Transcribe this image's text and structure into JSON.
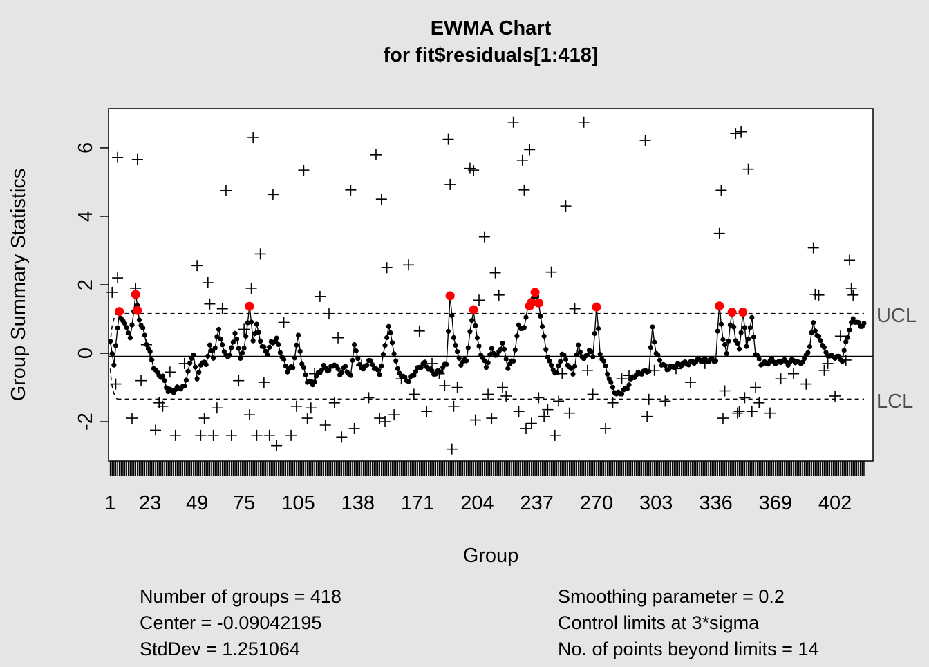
{
  "chart_data": {
    "type": "line",
    "chart_kind": "EWMA control chart",
    "title": "EWMA Chart",
    "subtitle": "for fit$residuals[1:418]",
    "xlabel": "Group",
    "ylabel": "Group Summary Statistics",
    "xlim": [
      0,
      423
    ],
    "ylim": [
      -3.15,
      7.15
    ],
    "x_ticks": [
      "1",
      "23",
      "49",
      "75",
      "105",
      "138",
      "171",
      "204",
      "237",
      "270",
      "303",
      "336",
      "369",
      "402"
    ],
    "y_ticks": [
      "-2",
      "0",
      "2",
      "4",
      "6"
    ],
    "n_groups": 418,
    "center": -0.09042195,
    "ucl": 1.16,
    "lcl": -1.34,
    "limit_labels": {
      "upper": "UCL",
      "lower": "LCL"
    },
    "ewma_anchor_points": [
      [
        1,
        0.3
      ],
      [
        3,
        -0.3
      ],
      [
        6,
        1.2
      ],
      [
        8,
        0.9
      ],
      [
        10,
        0.8
      ],
      [
        12,
        0.4
      ],
      [
        15,
        1.7
      ],
      [
        17,
        1.0
      ],
      [
        19,
        0.7
      ],
      [
        21,
        0.3
      ],
      [
        23,
        0.0
      ],
      [
        25,
        -0.4
      ],
      [
        27,
        -0.6
      ],
      [
        30,
        -0.7
      ],
      [
        33,
        -1.1
      ],
      [
        36,
        -1.1
      ],
      [
        39,
        -1.0
      ],
      [
        42,
        -1.0
      ],
      [
        44,
        -0.5
      ],
      [
        47,
        0.0
      ],
      [
        49,
        -0.8
      ],
      [
        51,
        -0.3
      ],
      [
        54,
        -0.3
      ],
      [
        56,
        0.2
      ],
      [
        58,
        -0.1
      ],
      [
        61,
        0.7
      ],
      [
        64,
        0.0
      ],
      [
        67,
        -0.1
      ],
      [
        70,
        0.6
      ],
      [
        73,
        -0.1
      ],
      [
        75,
        0.1
      ],
      [
        78,
        1.35
      ],
      [
        80,
        0.4
      ],
      [
        82,
        0.8
      ],
      [
        85,
        0.2
      ],
      [
        88,
        0.0
      ],
      [
        90,
        0.3
      ],
      [
        93,
        0.4
      ],
      [
        96,
        -0.1
      ],
      [
        99,
        -0.5
      ],
      [
        102,
        -0.4
      ],
      [
        105,
        0.5
      ],
      [
        107,
        -0.3
      ],
      [
        110,
        -0.8
      ],
      [
        113,
        -0.9
      ],
      [
        116,
        -0.6
      ],
      [
        119,
        -0.4
      ],
      [
        122,
        -0.5
      ],
      [
        125,
        -0.3
      ],
      [
        128,
        -0.6
      ],
      [
        131,
        -0.4
      ],
      [
        134,
        -0.7
      ],
      [
        136,
        0.3
      ],
      [
        138,
        -0.2
      ],
      [
        141,
        -0.5
      ],
      [
        144,
        -0.2
      ],
      [
        147,
        -0.4
      ],
      [
        150,
        -0.6
      ],
      [
        153,
        0.2
      ],
      [
        155,
        0.8
      ],
      [
        157,
        0.3
      ],
      [
        160,
        -0.5
      ],
      [
        163,
        -0.7
      ],
      [
        166,
        -0.8
      ],
      [
        169,
        -0.6
      ],
      [
        172,
        -0.4
      ],
      [
        175,
        -0.3
      ],
      [
        178,
        -0.5
      ],
      [
        181,
        -0.6
      ],
      [
        184,
        -0.5
      ],
      [
        187,
        -0.3
      ],
      [
        189,
        1.65
      ],
      [
        191,
        0.5
      ],
      [
        193,
        0.0
      ],
      [
        195,
        -0.3
      ],
      [
        198,
        -0.2
      ],
      [
        200,
        0.6
      ],
      [
        202,
        1.25
      ],
      [
        204,
        0.4
      ],
      [
        206,
        0.0
      ],
      [
        209,
        -0.4
      ],
      [
        212,
        0.1
      ],
      [
        215,
        -0.1
      ],
      [
        218,
        0.3
      ],
      [
        221,
        -0.4
      ],
      [
        224,
        -0.2
      ],
      [
        227,
        0.8
      ],
      [
        230,
        0.7
      ],
      [
        232,
        1.4
      ],
      [
        234,
        1.5
      ],
      [
        236,
        1.8
      ],
      [
        238,
        1.45
      ],
      [
        240,
        0.8
      ],
      [
        242,
        0.1
      ],
      [
        245,
        -0.4
      ],
      [
        248,
        -0.6
      ],
      [
        251,
        0.0
      ],
      [
        254,
        -0.3
      ],
      [
        257,
        -0.6
      ],
      [
        260,
        0.2
      ],
      [
        263,
        -0.2
      ],
      [
        266,
        0.1
      ],
      [
        268,
        -0.1
      ],
      [
        270,
        1.35
      ],
      [
        272,
        0.0
      ],
      [
        275,
        -0.4
      ],
      [
        278,
        -0.9
      ],
      [
        281,
        -1.2
      ],
      [
        284,
        -1.15
      ],
      [
        287,
        -1.0
      ],
      [
        290,
        -0.7
      ],
      [
        293,
        -0.6
      ],
      [
        296,
        -0.55
      ],
      [
        299,
        -0.5
      ],
      [
        301,
        0.75
      ],
      [
        303,
        0.0
      ],
      [
        306,
        -0.3
      ],
      [
        309,
        -0.45
      ],
      [
        312,
        -0.4
      ],
      [
        315,
        -0.35
      ],
      [
        318,
        -0.3
      ],
      [
        321,
        -0.3
      ],
      [
        324,
        -0.25
      ],
      [
        327,
        -0.2
      ],
      [
        330,
        -0.2
      ],
      [
        333,
        -0.2
      ],
      [
        336,
        -0.2
      ],
      [
        338,
        1.4
      ],
      [
        340,
        0.4
      ],
      [
        342,
        0.0
      ],
      [
        345,
        1.2
      ],
      [
        347,
        0.4
      ],
      [
        349,
        0.1
      ],
      [
        351,
        1.2
      ],
      [
        353,
        0.2
      ],
      [
        356,
        1.0
      ],
      [
        358,
        0.0
      ],
      [
        361,
        -0.3
      ],
      [
        364,
        -0.3
      ],
      [
        367,
        -0.2
      ],
      [
        370,
        -0.3
      ],
      [
        373,
        -0.2
      ],
      [
        376,
        -0.3
      ],
      [
        379,
        -0.2
      ],
      [
        382,
        -0.3
      ],
      [
        385,
        -0.2
      ],
      [
        388,
        0.2
      ],
      [
        390,
        0.9
      ],
      [
        392,
        0.5
      ],
      [
        394,
        0.4
      ],
      [
        397,
        0.0
      ],
      [
        400,
        -0.1
      ],
      [
        403,
        -0.1
      ],
      [
        406,
        -0.2
      ],
      [
        408,
        0.3
      ],
      [
        410,
        0.7
      ],
      [
        412,
        1.0
      ],
      [
        414,
        0.9
      ],
      [
        416,
        0.8
      ],
      [
        418,
        0.85
      ]
    ],
    "points_beyond_limits_xy": [
      [
        6,
        1.22
      ],
      [
        15,
        1.72
      ],
      [
        16,
        1.25
      ],
      [
        78,
        1.37
      ],
      [
        189,
        1.68
      ],
      [
        202,
        1.27
      ],
      [
        233,
        1.38
      ],
      [
        234,
        1.48
      ],
      [
        236,
        1.78
      ],
      [
        238,
        1.47
      ],
      [
        270,
        1.35
      ],
      [
        338,
        1.38
      ],
      [
        345,
        1.2
      ],
      [
        351,
        1.2
      ]
    ],
    "group_summary_points": [
      [
        2,
        1.78
      ],
      [
        4,
        -0.9
      ],
      [
        5,
        2.2
      ],
      [
        5,
        5.72
      ],
      [
        13,
        -1.9
      ],
      [
        15,
        1.9
      ],
      [
        16,
        5.66
      ],
      [
        18,
        -0.8
      ],
      [
        21,
        0.25
      ],
      [
        23,
        -0.1
      ],
      [
        26,
        -2.25
      ],
      [
        28,
        -1.45
      ],
      [
        30,
        -1.55
      ],
      [
        34,
        -0.55
      ],
      [
        37,
        -2.4
      ],
      [
        42,
        -0.3
      ],
      [
        49,
        2.56
      ],
      [
        51,
        -2.4
      ],
      [
        53,
        -1.9
      ],
      [
        55,
        2.06
      ],
      [
        56,
        1.44
      ],
      [
        58,
        -2.4
      ],
      [
        60,
        -1.6
      ],
      [
        63,
        1.3
      ],
      [
        65,
        4.75
      ],
      [
        68,
        -2.4
      ],
      [
        72,
        -0.8
      ],
      [
        75,
        0.7
      ],
      [
        78,
        -1.8
      ],
      [
        79,
        1.9
      ],
      [
        80,
        6.3
      ],
      [
        82,
        -2.4
      ],
      [
        84,
        2.9
      ],
      [
        86,
        -0.85
      ],
      [
        89,
        -2.4
      ],
      [
        91,
        4.64
      ],
      [
        93,
        -2.7
      ],
      [
        97,
        0.9
      ],
      [
        101,
        -2.4
      ],
      [
        104,
        -1.55
      ],
      [
        108,
        5.35
      ],
      [
        110,
        -1.9
      ],
      [
        112,
        -1.6
      ],
      [
        114,
        -0.6
      ],
      [
        117,
        1.66
      ],
      [
        120,
        -2.1
      ],
      [
        122,
        1.15
      ],
      [
        125,
        -1.45
      ],
      [
        127,
        0.45
      ],
      [
        129,
        -2.45
      ],
      [
        134,
        4.77
      ],
      [
        136,
        -2.2
      ],
      [
        140,
        -0.35
      ],
      [
        144,
        -1.3
      ],
      [
        148,
        5.8
      ],
      [
        150,
        -1.9
      ],
      [
        151,
        4.5
      ],
      [
        153,
        -2.0
      ],
      [
        154,
        2.5
      ],
      [
        158,
        -1.8
      ],
      [
        162,
        -0.75
      ],
      [
        166,
        2.58
      ],
      [
        169,
        -1.2
      ],
      [
        172,
        0.65
      ],
      [
        176,
        -1.7
      ],
      [
        179,
        -0.3
      ],
      [
        183,
        -0.6
      ],
      [
        186,
        -0.95
      ],
      [
        188,
        6.25
      ],
      [
        189,
        4.93
      ],
      [
        190,
        -2.8
      ],
      [
        191,
        -1.55
      ],
      [
        193,
        -1.0
      ],
      [
        200,
        5.4
      ],
      [
        202,
        5.35
      ],
      [
        203,
        -1.95
      ],
      [
        205,
        1.55
      ],
      [
        208,
        3.4
      ],
      [
        210,
        -1.2
      ],
      [
        212,
        -1.9
      ],
      [
        214,
        2.35
      ],
      [
        216,
        1.7
      ],
      [
        218,
        -1.0
      ],
      [
        220,
        -1.25
      ],
      [
        224,
        6.75
      ],
      [
        227,
        -1.7
      ],
      [
        229,
        5.64
      ],
      [
        230,
        4.77
      ],
      [
        231,
        -2.2
      ],
      [
        233,
        5.95
      ],
      [
        234,
        -2.05
      ],
      [
        238,
        -1.3
      ],
      [
        241,
        -1.85
      ],
      [
        243,
        -1.65
      ],
      [
        245,
        2.37
      ],
      [
        247,
        -2.4
      ],
      [
        249,
        -1.4
      ],
      [
        251,
        -0.6
      ],
      [
        253,
        4.3
      ],
      [
        255,
        -1.75
      ],
      [
        258,
        1.3
      ],
      [
        263,
        6.75
      ],
      [
        265,
        -0.5
      ],
      [
        268,
        -1.2
      ],
      [
        275,
        -2.2
      ],
      [
        279,
        -1.45
      ],
      [
        284,
        -0.75
      ],
      [
        288,
        -0.65
      ],
      [
        297,
        6.22
      ],
      [
        298,
        -1.85
      ],
      [
        299,
        -1.35
      ],
      [
        302,
        -0.5
      ],
      [
        308,
        -1.4
      ],
      [
        314,
        -0.45
      ],
      [
        322,
        -0.85
      ],
      [
        330,
        -0.3
      ],
      [
        338,
        3.5
      ],
      [
        339,
        4.76
      ],
      [
        340,
        -1.9
      ],
      [
        341,
        -1.1
      ],
      [
        347,
        6.42
      ],
      [
        348,
        -1.75
      ],
      [
        349,
        -1.7
      ],
      [
        350,
        6.47
      ],
      [
        352,
        -1.3
      ],
      [
        354,
        5.38
      ],
      [
        356,
        -1.7
      ],
      [
        358,
        -1.0
      ],
      [
        360,
        -1.45
      ],
      [
        366,
        -1.75
      ],
      [
        372,
        -0.75
      ],
      [
        379,
        -0.6
      ],
      [
        386,
        -0.9
      ],
      [
        390,
        3.08
      ],
      [
        391,
        1.72
      ],
      [
        393,
        1.7
      ],
      [
        396,
        -0.5
      ],
      [
        398,
        -0.3
      ],
      [
        402,
        -1.25
      ],
      [
        405,
        0.5
      ],
      [
        408,
        -0.2
      ],
      [
        410,
        2.72
      ],
      [
        411,
        1.9
      ],
      [
        412,
        1.7
      ]
    ],
    "stats": {
      "groups": "Number of groups = 418",
      "center": "Center = -0.09042195",
      "stddev": "StdDev = 1.251064",
      "smoothing": "Smoothing parameter =  0.2",
      "limits": "Control limits at 3*sigma",
      "beyond": "No. of points beyond limits = 14"
    },
    "colors": {
      "background": "#e5e5e5",
      "plot_background": "#ffffff",
      "series": "#000000",
      "violation": "#ff0000",
      "limit_label": "#4d4d4d"
    }
  }
}
